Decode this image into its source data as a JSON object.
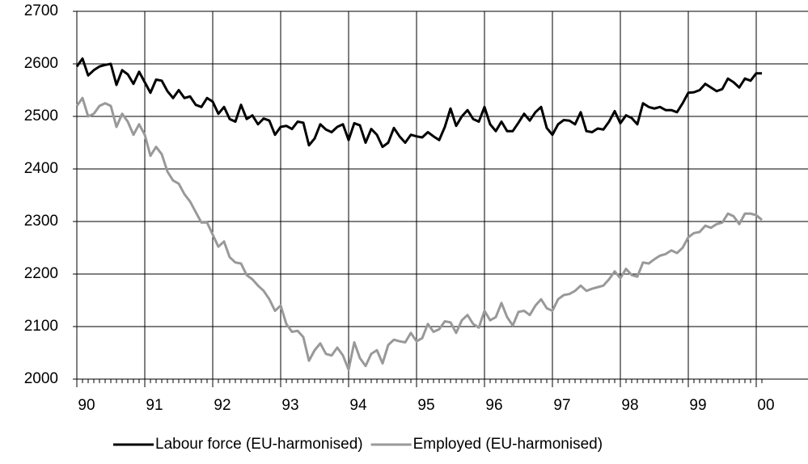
{
  "chart_data": {
    "type": "line",
    "categories": [
      "90",
      null,
      null,
      null,
      null,
      null,
      null,
      null,
      null,
      null,
      null,
      null,
      "91",
      null,
      null,
      null,
      null,
      null,
      null,
      null,
      null,
      null,
      null,
      null,
      "92",
      null,
      null,
      null,
      null,
      null,
      null,
      null,
      null,
      null,
      null,
      null,
      "93",
      null,
      null,
      null,
      null,
      null,
      null,
      null,
      null,
      null,
      null,
      null,
      "94",
      null,
      null,
      null,
      null,
      null,
      null,
      null,
      null,
      null,
      null,
      null,
      "95",
      null,
      null,
      null,
      null,
      null,
      null,
      null,
      null,
      null,
      null,
      null,
      "96",
      null,
      null,
      null,
      null,
      null,
      null,
      null,
      null,
      null,
      null,
      null,
      "97",
      null,
      null,
      null,
      null,
      null,
      null,
      null,
      null,
      null,
      null,
      null,
      "98",
      null,
      null,
      null,
      null,
      null,
      null,
      null,
      null,
      null,
      null,
      null,
      "99",
      null,
      null,
      null,
      null,
      null,
      null,
      null,
      null,
      null,
      null,
      null,
      "00",
      null
    ],
    "series": [
      {
        "name": "Labour force (EU-harmonised)",
        "color": "#000000",
        "values": [
          2595,
          2610,
          2578,
          2588,
          2595,
          2598,
          2600,
          2560,
          2588,
          2580,
          2562,
          2585,
          2565,
          2545,
          2570,
          2568,
          2548,
          2535,
          2550,
          2535,
          2538,
          2522,
          2518,
          2535,
          2528,
          2505,
          2518,
          2495,
          2490,
          2522,
          2495,
          2502,
          2485,
          2496,
          2492,
          2465,
          2480,
          2482,
          2476,
          2490,
          2488,
          2445,
          2458,
          2485,
          2475,
          2470,
          2480,
          2485,
          2455,
          2487,
          2483,
          2450,
          2476,
          2465,
          2442,
          2450,
          2478,
          2462,
          2450,
          2465,
          2462,
          2460,
          2470,
          2462,
          2455,
          2480,
          2515,
          2482,
          2500,
          2512,
          2495,
          2490,
          2518,
          2485,
          2472,
          2490,
          2472,
          2472,
          2488,
          2505,
          2492,
          2508,
          2518,
          2478,
          2465,
          2485,
          2493,
          2492,
          2485,
          2508,
          2472,
          2470,
          2477,
          2475,
          2490,
          2510,
          2487,
          2502,
          2497,
          2485,
          2525,
          2518,
          2515,
          2518,
          2512,
          2512,
          2508,
          2525,
          2545,
          2546,
          2550,
          2562,
          2555,
          2548,
          2552,
          2572,
          2565,
          2555,
          2572,
          2568,
          2582,
          2582
        ]
      },
      {
        "name": "Employed (EU-harmonised)",
        "color": "#999999",
        "values": [
          2520,
          2535,
          2500,
          2505,
          2520,
          2525,
          2520,
          2480,
          2505,
          2490,
          2465,
          2485,
          2465,
          2425,
          2442,
          2428,
          2395,
          2378,
          2372,
          2352,
          2338,
          2318,
          2298,
          2298,
          2275,
          2252,
          2262,
          2232,
          2222,
          2220,
          2198,
          2190,
          2178,
          2168,
          2152,
          2130,
          2140,
          2105,
          2090,
          2092,
          2080,
          2035,
          2055,
          2068,
          2048,
          2045,
          2060,
          2045,
          2018,
          2070,
          2040,
          2025,
          2048,
          2055,
          2030,
          2065,
          2075,
          2072,
          2070,
          2088,
          2072,
          2078,
          2105,
          2090,
          2095,
          2110,
          2108,
          2088,
          2112,
          2122,
          2105,
          2098,
          2130,
          2112,
          2118,
          2145,
          2118,
          2102,
          2128,
          2130,
          2122,
          2140,
          2152,
          2135,
          2130,
          2152,
          2160,
          2162,
          2168,
          2178,
          2168,
          2172,
          2175,
          2178,
          2190,
          2205,
          2192,
          2210,
          2198,
          2195,
          2222,
          2220,
          2228,
          2235,
          2238,
          2245,
          2240,
          2250,
          2270,
          2278,
          2280,
          2292,
          2288,
          2295,
          2298,
          2315,
          2310,
          2295,
          2315,
          2315,
          2312,
          2303
        ]
      }
    ],
    "ylim": [
      2000,
      2700
    ],
    "yticks": [
      2000,
      2100,
      2200,
      2300,
      2400,
      2500,
      2600,
      2700
    ],
    "grid": true,
    "legend": "bottom"
  }
}
